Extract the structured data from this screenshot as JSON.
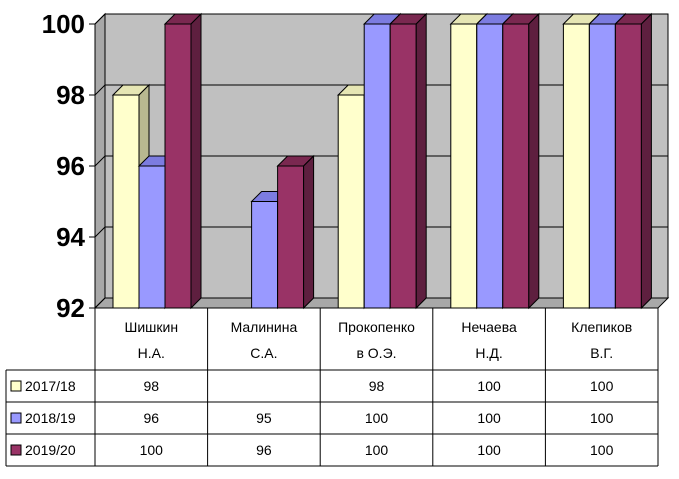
{
  "chart_data": {
    "type": "bar",
    "categories": [
      [
        "Шишкин",
        "Н.А."
      ],
      [
        "Малинина",
        "С.А."
      ],
      [
        "Прокопенко",
        "в О.Э."
      ],
      [
        "Нечаева",
        "Н.Д."
      ],
      [
        "Клепиков",
        "В.Г."
      ]
    ],
    "series": [
      {
        "name": "2017/18",
        "values": [
          98,
          null,
          98,
          100,
          100
        ],
        "color": "#FFFFCC",
        "side": "#B8B890",
        "top": "#E6E6B4"
      },
      {
        "name": "2018/19",
        "values": [
          96,
          95,
          100,
          100,
          100
        ],
        "color": "#9999FF",
        "side": "#5A5AA8",
        "top": "#7C7CE0"
      },
      {
        "name": "2019/20",
        "values": [
          100,
          96,
          100,
          100,
          100
        ],
        "color": "#993366",
        "side": "#5E1F3F",
        "top": "#7A2850"
      }
    ],
    "table": {
      "rows": [
        {
          "label": "2017/18",
          "cells": [
            "98",
            "",
            "98",
            "100",
            "100"
          ]
        },
        {
          "label": "2018/19",
          "cells": [
            "96",
            "95",
            "100",
            "100",
            "100"
          ]
        },
        {
          "label": "2019/20",
          "cells": [
            "100",
            "96",
            "100",
            "100",
            "100"
          ]
        }
      ]
    },
    "yticks": [
      92,
      94,
      96,
      98,
      100
    ],
    "ylim": [
      92,
      100
    ],
    "grid": true,
    "wall_color": "#C0C0C0"
  }
}
